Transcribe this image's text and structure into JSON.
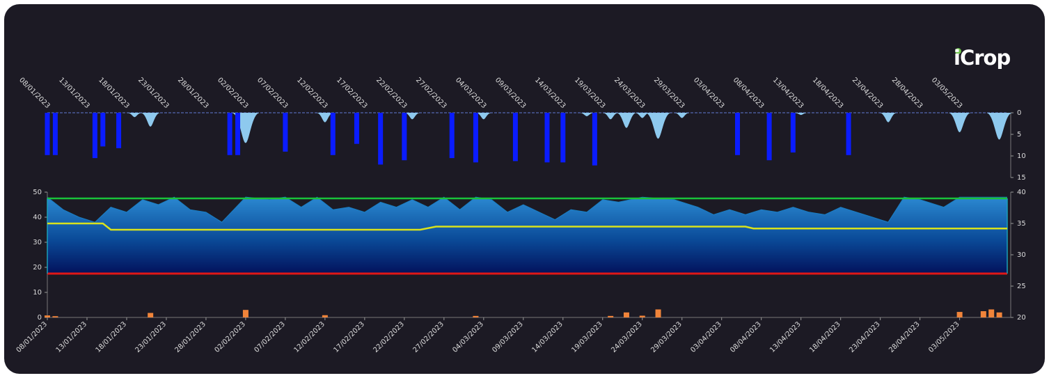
{
  "brand": {
    "logo_text": "iCrop"
  },
  "chart_data": [
    {
      "type": "bar",
      "panel": "precipitation-irrigation",
      "x_dates": [
        "08/01/2023",
        "13/01/2023",
        "18/01/2023",
        "23/01/2023",
        "28/01/2023",
        "02/02/2023",
        "07/02/2023",
        "12/02/2023",
        "17/02/2023",
        "22/02/2023",
        "27/02/2023",
        "04/03/2023",
        "09/03/2023",
        "14/03/2023",
        "19/03/2023",
        "24/03/2023",
        "29/03/2023",
        "03/04/2023",
        "08/04/2023",
        "13/04/2023",
        "18/04/2023",
        "23/04/2023",
        "28/04/2023",
        "03/05/2023"
      ],
      "y_axis_right": {
        "ticks": [
          0,
          5,
          10,
          15
        ],
        "ylim": [
          0,
          15
        ],
        "inverted": true
      },
      "series": [
        {
          "color": "#0a1cff",
          "points": [
            {
              "date": "08/01/2023",
              "value": 9.8
            },
            {
              "date": "09/01/2023",
              "value": 9.8
            },
            {
              "date": "14/01/2023",
              "value": 10.5
            },
            {
              "date": "15/01/2023",
              "value": 7.8
            },
            {
              "date": "17/01/2023",
              "value": 8.2
            },
            {
              "date": "31/01/2023",
              "value": 9.8
            },
            {
              "date": "01/02/2023",
              "value": 9.8
            },
            {
              "date": "07/02/2023",
              "value": 9.0
            },
            {
              "date": "13/02/2023",
              "value": 9.8
            },
            {
              "date": "16/02/2023",
              "value": 7.2
            },
            {
              "date": "19/02/2023",
              "value": 12.0
            },
            {
              "date": "22/02/2023",
              "value": 11.0
            },
            {
              "date": "28/02/2023",
              "value": 10.5
            },
            {
              "date": "03/03/2023",
              "value": 11.5
            },
            {
              "date": "08/03/2023",
              "value": 11.2
            },
            {
              "date": "12/03/2023",
              "value": 11.5
            },
            {
              "date": "14/03/2023",
              "value": 11.5
            },
            {
              "date": "18/03/2023",
              "value": 12.2
            },
            {
              "date": "05/04/2023",
              "value": 9.8
            },
            {
              "date": "09/04/2023",
              "value": 11.0
            },
            {
              "date": "12/04/2023",
              "value": 9.2
            },
            {
              "date": "19/04/2023",
              "value": 9.8
            }
          ]
        },
        {
          "color": "#8ec9ee",
          "shape": "area",
          "points": [
            {
              "date": "19/01/2023",
              "value": 1.0
            },
            {
              "date": "21/01/2023",
              "value": 3.2
            },
            {
              "date": "02/02/2023",
              "value": 7.0
            },
            {
              "date": "12/02/2023",
              "value": 2.2
            },
            {
              "date": "23/02/2023",
              "value": 1.5
            },
            {
              "date": "04/03/2023",
              "value": 1.5
            },
            {
              "date": "17/03/2023",
              "value": 0.8
            },
            {
              "date": "20/03/2023",
              "value": 1.5
            },
            {
              "date": "22/03/2023",
              "value": 3.5
            },
            {
              "date": "24/03/2023",
              "value": 1.2
            },
            {
              "date": "26/03/2023",
              "value": 6.0
            },
            {
              "date": "29/03/2023",
              "value": 1.2
            },
            {
              "date": "13/04/2023",
              "value": 0.5
            },
            {
              "date": "24/04/2023",
              "value": 2.2
            },
            {
              "date": "03/05/2023",
              "value": 4.5
            },
            {
              "date": "08/05/2023",
              "value": 6.2
            }
          ]
        }
      ]
    },
    {
      "type": "area",
      "panel": "soil-moisture",
      "x_dates": [
        "08/01/2023",
        "13/01/2023",
        "18/01/2023",
        "23/01/2023",
        "28/01/2023",
        "02/02/2023",
        "07/02/2023",
        "12/02/2023",
        "17/02/2023",
        "22/02/2023",
        "27/02/2023",
        "04/03/2023",
        "09/03/2023",
        "14/03/2023",
        "19/03/2023",
        "24/03/2023",
        "29/03/2023",
        "03/04/2023",
        "08/04/2023",
        "13/04/2023",
        "18/04/2023",
        "23/04/2023",
        "28/04/2023",
        "03/05/2023"
      ],
      "y_axis_left": {
        "ticks": [
          0,
          10,
          20,
          30,
          40,
          50
        ],
        "ylim": [
          0,
          50
        ]
      },
      "y_axis_right": {
        "ticks": [
          20,
          25,
          30,
          35,
          40
        ],
        "ylim": [
          20,
          40
        ]
      },
      "upper_line": {
        "color": "#19c23a",
        "value": 39.0
      },
      "lower_line": {
        "color": "#e01717",
        "value": 27.0
      },
      "soil_moisture": {
        "color": "#1a7fc4",
        "values": [
          {
            "date": "08/01/2023",
            "value": 48
          },
          {
            "date": "10/01/2023",
            "value": 43
          },
          {
            "date": "12/01/2023",
            "value": 40
          },
          {
            "date": "14/01/2023",
            "value": 38
          },
          {
            "date": "16/01/2023",
            "value": 44
          },
          {
            "date": "18/01/2023",
            "value": 42
          },
          {
            "date": "20/01/2023",
            "value": 47
          },
          {
            "date": "22/01/2023",
            "value": 45
          },
          {
            "date": "24/01/2023",
            "value": 48
          },
          {
            "date": "26/01/2023",
            "value": 43
          },
          {
            "date": "28/01/2023",
            "value": 42
          },
          {
            "date": "30/01/2023",
            "value": 38
          },
          {
            "date": "02/02/2023",
            "value": 48
          },
          {
            "date": "05/02/2023",
            "value": 47
          },
          {
            "date": "07/02/2023",
            "value": 48
          },
          {
            "date": "09/02/2023",
            "value": 44
          },
          {
            "date": "11/02/2023",
            "value": 48
          },
          {
            "date": "13/02/2023",
            "value": 43
          },
          {
            "date": "15/02/2023",
            "value": 44
          },
          {
            "date": "17/02/2023",
            "value": 42
          },
          {
            "date": "19/02/2023",
            "value": 46
          },
          {
            "date": "21/02/2023",
            "value": 44
          },
          {
            "date": "23/02/2023",
            "value": 47
          },
          {
            "date": "25/02/2023",
            "value": 44
          },
          {
            "date": "27/02/2023",
            "value": 48
          },
          {
            "date": "01/03/2023",
            "value": 43
          },
          {
            "date": "03/03/2023",
            "value": 48
          },
          {
            "date": "05/03/2023",
            "value": 47
          },
          {
            "date": "07/03/2023",
            "value": 42
          },
          {
            "date": "09/03/2023",
            "value": 45
          },
          {
            "date": "11/03/2023",
            "value": 42
          },
          {
            "date": "13/03/2023",
            "value": 39
          },
          {
            "date": "15/03/2023",
            "value": 43
          },
          {
            "date": "17/03/2023",
            "value": 42
          },
          {
            "date": "19/03/2023",
            "value": 47
          },
          {
            "date": "21/03/2023",
            "value": 46
          },
          {
            "date": "24/03/2023",
            "value": 48
          },
          {
            "date": "28/03/2023",
            "value": 47
          },
          {
            "date": "31/03/2023",
            "value": 44
          },
          {
            "date": "02/04/2023",
            "value": 41
          },
          {
            "date": "04/04/2023",
            "value": 43
          },
          {
            "date": "06/04/2023",
            "value": 41
          },
          {
            "date": "08/04/2023",
            "value": 43
          },
          {
            "date": "10/04/2023",
            "value": 42
          },
          {
            "date": "12/04/2023",
            "value": 44
          },
          {
            "date": "14/04/2023",
            "value": 42
          },
          {
            "date": "16/04/2023",
            "value": 41
          },
          {
            "date": "18/04/2023",
            "value": 44
          },
          {
            "date": "20/04/2023",
            "value": 42
          },
          {
            "date": "22/04/2023",
            "value": 40
          },
          {
            "date": "24/04/2023",
            "value": 38
          },
          {
            "date": "26/04/2023",
            "value": 48
          },
          {
            "date": "28/04/2023",
            "value": 47
          },
          {
            "date": "01/05/2023",
            "value": 44
          },
          {
            "date": "03/05/2023",
            "value": 48
          },
          {
            "date": "09/05/2023",
            "value": 48
          }
        ]
      },
      "threshold": {
        "color": "#d9e21c",
        "values": [
          {
            "date": "08/01/2023",
            "value": 35
          },
          {
            "date": "15/01/2023",
            "value": 35
          },
          {
            "date": "16/01/2023",
            "value": 34
          },
          {
            "date": "24/02/2023",
            "value": 34
          },
          {
            "date": "26/02/2023",
            "value": 34.5
          },
          {
            "date": "06/04/2023",
            "value": 34.5
          },
          {
            "date": "07/04/2023",
            "value": 34.2
          },
          {
            "date": "09/05/2023",
            "value": 34.2
          }
        ]
      },
      "bars": {
        "color": "#f0843a",
        "values": [
          {
            "date": "08/01/2023",
            "value": 0.8
          },
          {
            "date": "09/01/2023",
            "value": 0.5
          },
          {
            "date": "21/01/2023",
            "value": 1.8
          },
          {
            "date": "02/02/2023",
            "value": 3.0
          },
          {
            "date": "12/02/2023",
            "value": 0.9
          },
          {
            "date": "03/03/2023",
            "value": 0.6
          },
          {
            "date": "20/03/2023",
            "value": 0.6
          },
          {
            "date": "22/03/2023",
            "value": 2.0
          },
          {
            "date": "24/03/2023",
            "value": 0.7
          },
          {
            "date": "26/03/2023",
            "value": 3.2
          },
          {
            "date": "03/05/2023",
            "value": 2.2
          },
          {
            "date": "06/05/2023",
            "value": 2.5
          },
          {
            "date": "07/05/2023",
            "value": 3.2
          },
          {
            "date": "08/05/2023",
            "value": 2.0
          }
        ]
      }
    }
  ]
}
